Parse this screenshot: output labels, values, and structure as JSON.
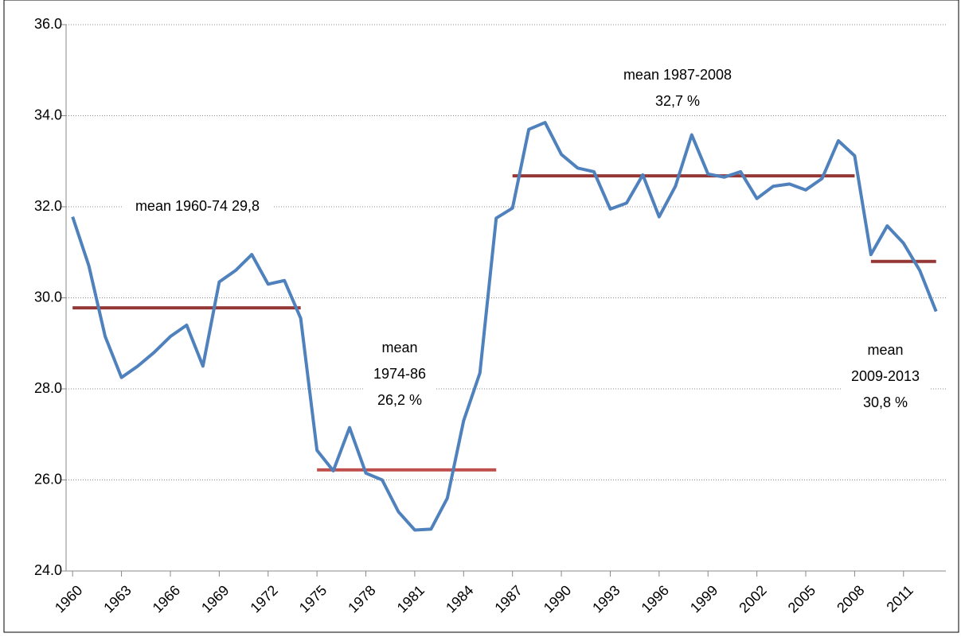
{
  "chart_data": {
    "type": "line",
    "x": [
      1960,
      1961,
      1962,
      1963,
      1964,
      1965,
      1966,
      1967,
      1968,
      1969,
      1970,
      1971,
      1972,
      1973,
      1974,
      1975,
      1976,
      1977,
      1978,
      1979,
      1980,
      1981,
      1982,
      1983,
      1984,
      1985,
      1986,
      1987,
      1988,
      1989,
      1990,
      1991,
      1992,
      1993,
      1994,
      1995,
      1996,
      1997,
      1998,
      1999,
      2000,
      2001,
      2002,
      2003,
      2004,
      2005,
      2006,
      2007,
      2008,
      2009,
      2010,
      2011,
      2012,
      2013
    ],
    "series": [
      {
        "color": "#4f81bd",
        "values": [
          31.78,
          30.7,
          29.15,
          28.25,
          28.5,
          28.8,
          29.15,
          29.4,
          28.5,
          30.35,
          30.6,
          30.95,
          30.3,
          30.38,
          29.55,
          26.65,
          26.2,
          27.15,
          26.15,
          26.0,
          25.3,
          24.9,
          24.92,
          25.6,
          27.3,
          28.35,
          31.75,
          31.97,
          33.7,
          33.85,
          33.15,
          32.85,
          32.77,
          31.95,
          32.08,
          32.7,
          31.78,
          32.45,
          33.58,
          32.72,
          32.65,
          32.77,
          32.18,
          32.45,
          32.5,
          32.37,
          32.62,
          33.45,
          33.12,
          30.95,
          31.58,
          31.2,
          30.6,
          29.7
        ]
      }
    ],
    "means": [
      {
        "x": [
          1960,
          1974
        ],
        "value": 29.78,
        "color": "#953735"
      },
      {
        "x": [
          1975,
          1986
        ],
        "value": 26.22,
        "color": "#c0504d"
      },
      {
        "x": [
          1987,
          2008
        ],
        "value": 32.68,
        "color": "#953735"
      },
      {
        "x": [
          2009,
          2013
        ],
        "value": 30.8,
        "color": "#953735"
      }
    ],
    "annotations": [
      {
        "lines": [
          "mean 1960-74 29,8"
        ]
      },
      {
        "lines": [
          "mean",
          "1974-86",
          "26,2 %"
        ]
      },
      {
        "lines": [
          "mean 1987-2008",
          "32,7 %"
        ]
      },
      {
        "lines": [
          "mean",
          "2009-2013",
          "30,8 %"
        ]
      }
    ],
    "xlim": [
      1959.6,
      2013.6
    ],
    "xticks": [
      1960,
      1963,
      1966,
      1969,
      1972,
      1975,
      1978,
      1981,
      1984,
      1987,
      1990,
      1993,
      1996,
      1999,
      2002,
      2005,
      2008,
      2011
    ],
    "ylim": [
      24,
      36
    ],
    "yticks": [
      {
        "value": 24,
        "label": "24.0"
      },
      {
        "value": 26,
        "label": "26.0"
      },
      {
        "value": 28,
        "label": "28.0"
      },
      {
        "value": 30,
        "label": "30.0"
      },
      {
        "value": 32,
        "label": "32.0"
      },
      {
        "value": 34,
        "label": "34.0"
      },
      {
        "value": 36,
        "label": "36.0"
      }
    ],
    "grid": true
  }
}
